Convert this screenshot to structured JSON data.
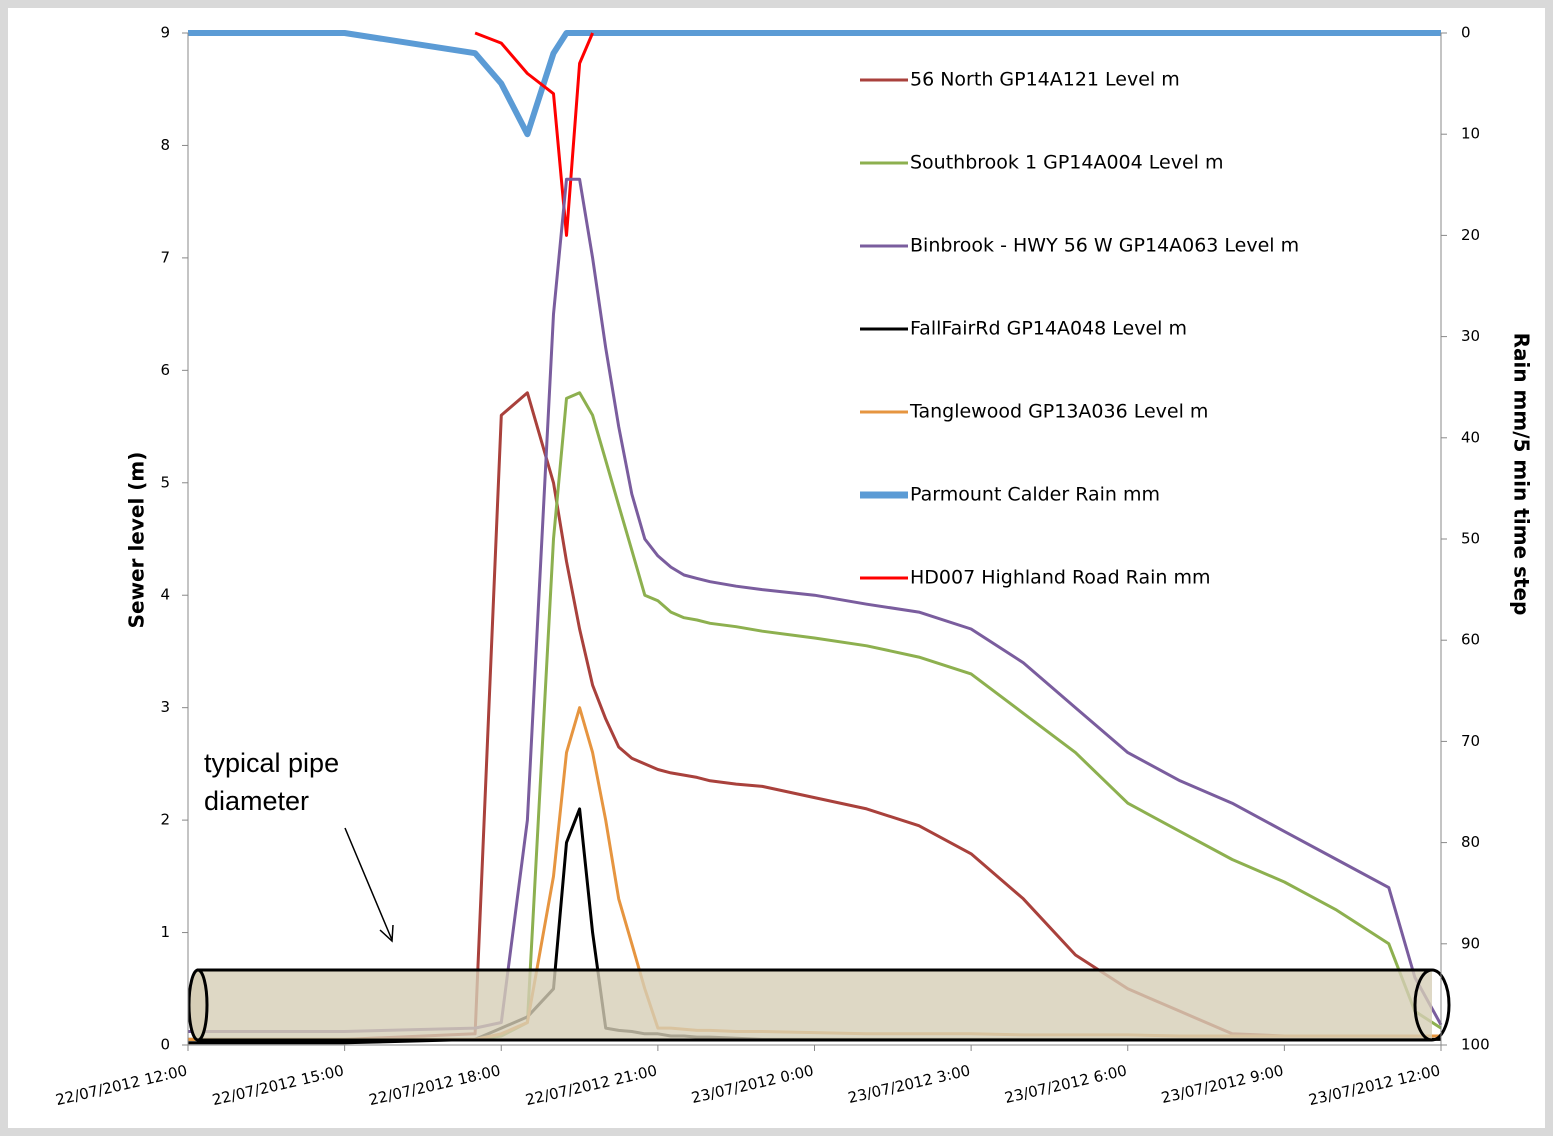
{
  "chart_data": {
    "type": "line",
    "y_label": "Sewer level (m)",
    "y2_label": "Rain mm/5 min time step",
    "annotation": "typical pipe diameter",
    "x": [
      "22/07/2012 12:00",
      "22/07/2012 15:00",
      "22/07/2012 17:30",
      "22/07/2012 18:00",
      "22/07/2012 18:30",
      "22/07/2012 19:00",
      "22/07/2012 19:15",
      "22/07/2012 19:30",
      "22/07/2012 19:45",
      "22/07/2012 20:00",
      "22/07/2012 20:15",
      "22/07/2012 20:30",
      "22/07/2012 20:45",
      "22/07/2012 21:00",
      "22/07/2012 21:15",
      "22/07/2012 21:30",
      "22/07/2012 21:45",
      "22/07/2012 22:00",
      "22/07/2012 22:30",
      "22/07/2012 23:00",
      "23/07/2012 0:00",
      "23/07/2012 1:00",
      "23/07/2012 2:00",
      "23/07/2012 3:00",
      "23/07/2012 4:00",
      "23/07/2012 5:00",
      "23/07/2012 6:00",
      "23/07/2012 7:00",
      "23/07/2012 8:00",
      "23/07/2012 9:00",
      "23/07/2012 10:00",
      "23/07/2012 11:00",
      "23/07/2012 11:30",
      "23/07/2012 12:00"
    ],
    "xlim": [
      "22/07/2012 12:00",
      "23/07/2012 12:00"
    ],
    "xticks": [
      "22/07/2012 12:00",
      "22/07/2012 15:00",
      "22/07/2012 18:00",
      "22/07/2012 21:00",
      "23/07/2012 0:00",
      "23/07/2012 3:00",
      "23/07/2012 6:00",
      "23/07/2012 9:00",
      "23/07/2012 12:00"
    ],
    "ylim": [
      0,
      9
    ],
    "yticks": [
      0,
      1,
      2,
      3,
      4,
      5,
      6,
      7,
      8,
      9
    ],
    "y2lim": [
      0,
      100
    ],
    "y2ticks": [
      0,
      10,
      20,
      30,
      40,
      50,
      60,
      70,
      80,
      90,
      100
    ],
    "y2_inverted": true,
    "series": [
      {
        "name": "Parmount Calder Rain mm",
        "color": "#5b9bd5",
        "axis": "y2",
        "width": 6,
        "values": [
          0,
          0,
          2,
          5,
          10,
          2,
          0,
          0,
          0,
          0,
          0,
          0,
          0,
          0,
          0,
          0,
          0,
          0,
          0,
          0,
          0,
          0,
          0,
          0,
          0,
          0,
          0,
          0,
          0,
          0,
          0,
          0,
          0,
          0
        ]
      },
      {
        "name": "HD007 Highland Road Rain mm",
        "color": "#ff0000",
        "axis": "y2",
        "width": 3,
        "values": [
          null,
          null,
          0,
          1,
          4,
          6,
          20,
          3,
          0,
          null,
          null,
          null,
          null,
          null,
          null,
          null,
          null,
          null,
          null,
          null,
          null,
          null,
          null,
          null,
          null,
          null,
          null,
          null,
          null,
          null,
          null,
          null,
          null,
          null
        ]
      },
      {
        "name": "56 North GP14A121 Level m",
        "color": "#a9413c",
        "width": 3,
        "values": [
          0.05,
          0.05,
          0.1,
          5.6,
          5.8,
          5.0,
          4.3,
          3.7,
          3.2,
          2.9,
          2.65,
          2.55,
          2.5,
          2.45,
          2.42,
          2.4,
          2.38,
          2.35,
          2.32,
          2.3,
          2.2,
          2.1,
          1.95,
          1.7,
          1.3,
          0.8,
          0.5,
          0.3,
          0.1,
          0.08,
          0.08,
          0.08,
          0.08,
          0.08
        ]
      },
      {
        "name": " Southbrook 1 GP14A004 Level m",
        "color": "#8db04f",
        "width": 3,
        "values": [
          0.05,
          0.05,
          0.05,
          0.08,
          0.2,
          4.5,
          5.75,
          5.8,
          5.6,
          5.2,
          4.8,
          4.4,
          4.0,
          3.95,
          3.85,
          3.8,
          3.78,
          3.75,
          3.72,
          3.68,
          3.62,
          3.55,
          3.45,
          3.3,
          2.95,
          2.6,
          2.15,
          1.9,
          1.65,
          1.45,
          1.2,
          0.9,
          0.3,
          0.15
        ]
      },
      {
        "name": "Binbrook - HWY 56 W  GP14A063 Level m",
        "color": "#7a5d9e",
        "width": 3,
        "values": [
          0.12,
          0.12,
          0.15,
          0.2,
          2.0,
          6.5,
          7.7,
          7.7,
          7.0,
          6.2,
          5.5,
          4.9,
          4.5,
          4.35,
          4.25,
          4.18,
          4.15,
          4.12,
          4.08,
          4.05,
          4.0,
          3.92,
          3.85,
          3.7,
          3.4,
          3.0,
          2.6,
          2.35,
          2.15,
          1.9,
          1.65,
          1.4,
          0.6,
          0.18
        ]
      },
      {
        "name": "FallFairRd GP14A048 Level m",
        "color": "#000000",
        "width": 3,
        "values": [
          0.02,
          0.02,
          0.05,
          0.15,
          0.25,
          0.5,
          1.8,
          2.1,
          1.0,
          0.15,
          0.13,
          0.12,
          0.1,
          0.1,
          0.08,
          0.08,
          0.07,
          0.07,
          0.06,
          0.05,
          0.05,
          0.05,
          0.05,
          0.05,
          0.05,
          0.05,
          0.05,
          0.05,
          0.05,
          0.05,
          0.05,
          0.05,
          0.05,
          0.05
        ]
      },
      {
        "name": "Tanglewood GP13A036 Level m",
        "color": "#e69540",
        "width": 3,
        "values": [
          0.05,
          0.05,
          0.05,
          0.1,
          0.2,
          1.5,
          2.6,
          3.0,
          2.6,
          2.0,
          1.3,
          0.9,
          0.5,
          0.15,
          0.15,
          0.14,
          0.13,
          0.13,
          0.12,
          0.12,
          0.11,
          0.1,
          0.1,
          0.1,
          0.09,
          0.09,
          0.09,
          0.08,
          0.08,
          0.08,
          0.08,
          0.08,
          0.08,
          0.08
        ]
      }
    ],
    "legend_order": [
      2,
      3,
      4,
      5,
      6,
      0,
      1
    ]
  }
}
